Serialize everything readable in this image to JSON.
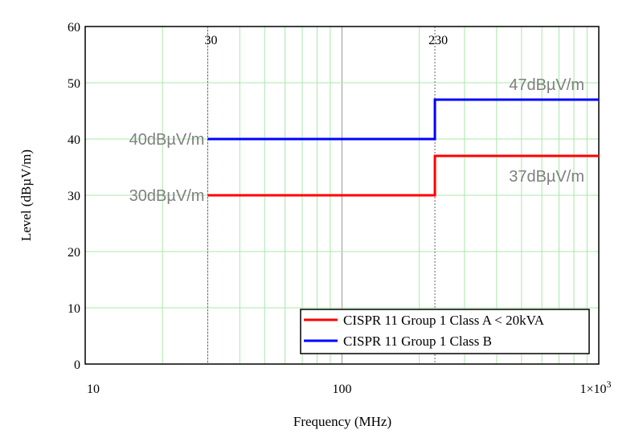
{
  "chart_data": {
    "type": "line",
    "title": "",
    "xlabel": "Frequency (MHz)",
    "ylabel": "Level  (dBµV/m)",
    "xscale": "log",
    "xlim": [
      10,
      1000
    ],
    "ylim": [
      0,
      60
    ],
    "grid": true,
    "x_tick_labels": [
      "10",
      "100",
      "1×10"
    ],
    "x_tick_exponent": "3",
    "y_ticks": [
      0,
      10,
      20,
      30,
      40,
      50,
      60
    ],
    "y_tick_labels": [
      "0",
      "10",
      "20",
      "30",
      "40",
      "50",
      "60"
    ],
    "markers": [
      {
        "x": 30,
        "label": "30"
      },
      {
        "x": 230,
        "label": "230"
      }
    ],
    "series": [
      {
        "name": "CISPR 11 Group 1 Class A < 20kVA",
        "color": "#ff0000",
        "x": [
          30,
          230,
          230,
          1000
        ],
        "y": [
          30,
          30,
          37,
          37
        ]
      },
      {
        "name": "CISPR 11 Group 1 Class B",
        "color": "#0000ff",
        "x": [
          30,
          230,
          230,
          1000
        ],
        "y": [
          40,
          40,
          47,
          47
        ]
      }
    ],
    "annotations": [
      {
        "text": "40dBµV/m",
        "x": 30,
        "y": 40,
        "align": "left-of"
      },
      {
        "text": "30dBµV/m",
        "x": 30,
        "y": 30,
        "align": "left-of"
      },
      {
        "text": "47dBµV/m",
        "x": 1000,
        "y": 47,
        "align": "above-right"
      },
      {
        "text": "37dBµV/m",
        "x": 1000,
        "y": 37,
        "align": "below-right"
      }
    ],
    "legend_position": "bottom-right"
  }
}
